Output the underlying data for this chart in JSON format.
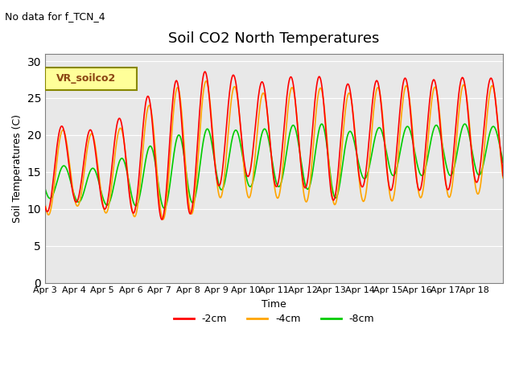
{
  "title": "Soil CO2 North Temperatures",
  "subtitle": "No data for f_TCN_4",
  "ylabel": "Soil Temperatures (C)",
  "xlabel": "Time",
  "legend_label": "VR_soilco2",
  "ylim": [
    0,
    31
  ],
  "yticks": [
    0,
    5,
    10,
    15,
    20,
    25,
    30
  ],
  "xtick_labels": [
    "Apr 3",
    "Apr 4",
    "Apr 5",
    "Apr 6",
    "Apr 7",
    "Apr 8",
    "Apr 9",
    "Apr 10",
    "Apr 11",
    "Apr 12",
    "Apr 13",
    "Apr 14",
    "Apr 15",
    "Apr 16",
    "Apr 17",
    "Apr 18"
  ],
  "series": {
    "2cm": {
      "color": "#FF0000",
      "label": "-2cm"
    },
    "4cm": {
      "color": "#FFA500",
      "label": "-4cm"
    },
    "8cm": {
      "color": "#00CC00",
      "label": "-8cm"
    }
  },
  "background_color": "#E8E8E8",
  "plot_bg_color": "#E8E8E8"
}
